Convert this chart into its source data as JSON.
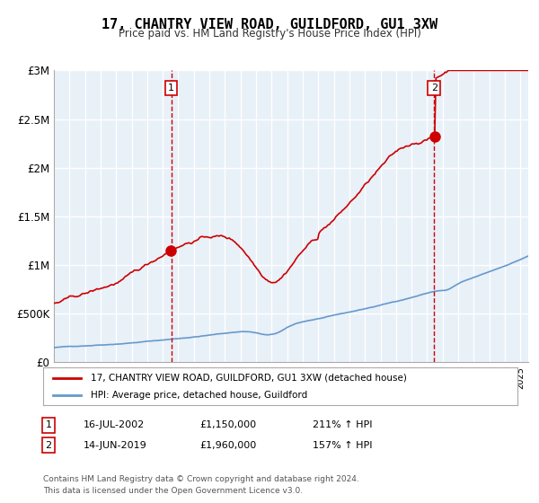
{
  "title": "17, CHANTRY VIEW ROAD, GUILDFORD, GU1 3XW",
  "subtitle": "Price paid vs. HM Land Registry's House Price Index (HPI)",
  "legend_line1": "17, CHANTRY VIEW ROAD, GUILDFORD, GU1 3XW (detached house)",
  "legend_line2": "HPI: Average price, detached house, Guildford",
  "annotation1_date": "16-JUL-2002",
  "annotation1_price": "£1,150,000",
  "annotation1_hpi": "211% ↑ HPI",
  "annotation2_date": "14-JUN-2019",
  "annotation2_price": "£1,960,000",
  "annotation2_hpi": "157% ↑ HPI",
  "footer": "Contains HM Land Registry data © Crown copyright and database right 2024.\nThis data is licensed under the Open Government Licence v3.0.",
  "hpi_color": "#6699cc",
  "price_color": "#cc0000",
  "marker_color": "#cc0000",
  "bg_color": "#dce9f5",
  "plot_bg": "#e8f0f8",
  "grid_color": "#ffffff",
  "dashed_color": "#cc0000",
  "ylim": [
    0,
    3000000
  ],
  "xlim_start": 1995.0,
  "xlim_end": 2025.5
}
